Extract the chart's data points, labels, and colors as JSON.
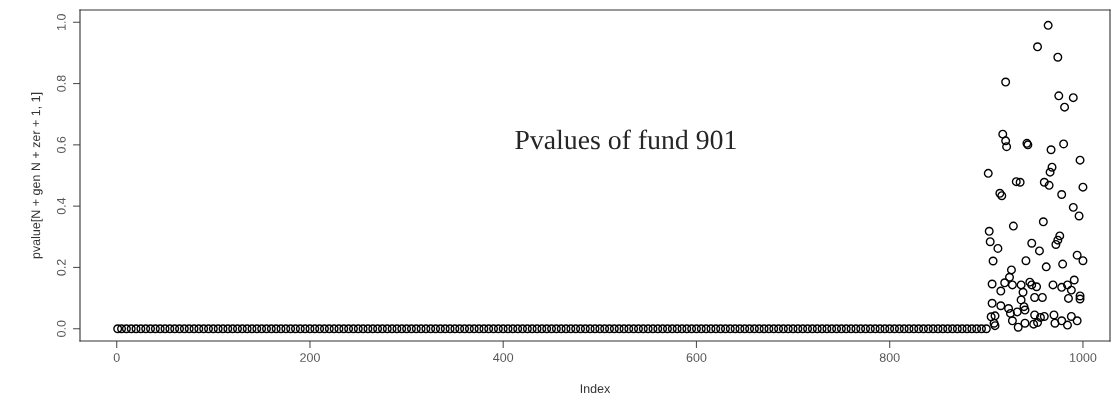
{
  "chart_data": {
    "type": "scatter",
    "xlabel": "Index",
    "ylabel": "pvalue[N + gen N + zer + 1, 1]",
    "annotations": [
      "Pvalues of fund 901"
    ],
    "xlim": [
      -38,
      1028
    ],
    "ylim": [
      -0.04,
      1.04
    ],
    "xticks": [
      0,
      200,
      400,
      600,
      800,
      1000
    ],
    "yticks": [
      {
        "value": 0.0,
        "label": "0.0"
      },
      {
        "value": 0.2,
        "label": "0.2"
      },
      {
        "value": 0.4,
        "label": "0.4"
      },
      {
        "value": 0.6,
        "label": "0.6"
      },
      {
        "value": 0.8,
        "label": "0.8"
      },
      {
        "value": 1.0,
        "label": "1.0"
      }
    ],
    "marker": "circle",
    "grid": false,
    "series": [
      {
        "color": "#000000",
        "x": [
          1,
          5,
          10,
          15,
          20,
          25,
          30,
          35,
          40,
          45,
          50,
          55,
          60,
          65,
          70,
          75,
          80,
          85,
          90,
          95,
          100,
          105,
          110,
          115,
          120,
          125,
          130,
          135,
          140,
          145,
          150,
          155,
          160,
          165,
          170,
          175,
          180,
          185,
          190,
          195,
          200,
          205,
          210,
          215,
          220,
          225,
          230,
          235,
          240,
          245,
          250,
          255,
          260,
          265,
          270,
          275,
          280,
          285,
          290,
          295,
          300,
          305,
          310,
          315,
          320,
          325,
          330,
          335,
          340,
          345,
          350,
          355,
          360,
          365,
          370,
          375,
          380,
          385,
          390,
          395,
          400,
          405,
          410,
          415,
          420,
          425,
          430,
          435,
          440,
          445,
          450,
          455,
          460,
          465,
          470,
          475,
          480,
          485,
          490,
          495,
          500,
          505,
          510,
          515,
          520,
          525,
          530,
          535,
          540,
          545,
          550,
          555,
          560,
          565,
          570,
          575,
          580,
          585,
          590,
          595,
          600,
          605,
          610,
          615,
          620,
          625,
          630,
          635,
          640,
          645,
          650,
          655,
          660,
          665,
          670,
          675,
          680,
          685,
          690,
          695,
          700,
          705,
          710,
          715,
          720,
          725,
          730,
          735,
          740,
          745,
          750,
          755,
          760,
          765,
          770,
          775,
          780,
          785,
          790,
          795,
          800,
          805,
          810,
          815,
          820,
          825,
          830,
          835,
          840,
          845,
          850,
          855,
          860,
          865,
          870,
          875,
          880,
          885,
          890,
          895,
          900
        ],
        "values": [
          0,
          0,
          0,
          0,
          0,
          0,
          0,
          0,
          0,
          0,
          0,
          0,
          0,
          0,
          0,
          0,
          0,
          0,
          0,
          0,
          0,
          0,
          0,
          0,
          0,
          0,
          0,
          0,
          0,
          0,
          0,
          0,
          0,
          0,
          0,
          0,
          0,
          0,
          0,
          0,
          0,
          0,
          0,
          0,
          0,
          0,
          0,
          0,
          0,
          0,
          0,
          0,
          0,
          0,
          0,
          0,
          0,
          0,
          0,
          0,
          0,
          0,
          0,
          0,
          0,
          0,
          0,
          0,
          0,
          0,
          0,
          0,
          0,
          0,
          0,
          0,
          0,
          0,
          0,
          0,
          0,
          0,
          0,
          0,
          0,
          0,
          0,
          0,
          0,
          0,
          0,
          0,
          0,
          0,
          0,
          0,
          0,
          0,
          0,
          0,
          0,
          0,
          0,
          0,
          0,
          0,
          0,
          0,
          0,
          0,
          0,
          0,
          0,
          0,
          0,
          0,
          0,
          0,
          0,
          0,
          0,
          0,
          0,
          0,
          0,
          0,
          0,
          0,
          0,
          0,
          0,
          0,
          0,
          0,
          0,
          0,
          0,
          0,
          0,
          0,
          0,
          0,
          0,
          0,
          0,
          0,
          0,
          0,
          0,
          0,
          0,
          0,
          0,
          0,
          0,
          0,
          0,
          0,
          0,
          0,
          0,
          0,
          0,
          0,
          0,
          0,
          0,
          0,
          0,
          0,
          0,
          0,
          0,
          0,
          0,
          0,
          0,
          0,
          0,
          0,
          0
        ]
      },
      {
        "color": "#000000",
        "x": [
          964,
          953,
          974,
          920,
          975,
          990,
          981,
          917,
          920,
          921,
          942,
          943,
          967,
          980,
          997,
          902,
          968,
          966,
          931,
          935,
          960,
          965,
          1000,
          978,
          914,
          916,
          990,
          996,
          928,
          959,
          903,
          904,
          912,
          947,
          955,
          976,
          974,
          972,
          907,
          941,
          962,
          979,
          994,
          1000,
          926,
          924,
          919,
          906,
          915,
          927,
          936,
          945,
          947,
          952,
          938,
          950,
          958,
          969,
          978,
          984,
          991,
          988,
          985,
          997,
          997,
          936,
          906,
          915,
          923,
          925,
          932,
          939,
          940,
          905,
          909,
          908,
          927,
          933,
          940,
          950,
          956,
          960,
          949,
          953,
          970,
          971,
          978,
          984,
          988,
          994,
          909
        ],
        "values": [
          0.99,
          0.92,
          0.886,
          0.805,
          0.76,
          0.754,
          0.723,
          0.635,
          0.613,
          0.594,
          0.605,
          0.6,
          0.584,
          0.603,
          0.55,
          0.507,
          0.527,
          0.511,
          0.48,
          0.478,
          0.478,
          0.468,
          0.462,
          0.438,
          0.442,
          0.434,
          0.396,
          0.368,
          0.335,
          0.349,
          0.318,
          0.284,
          0.262,
          0.279,
          0.254,
          0.303,
          0.289,
          0.275,
          0.221,
          0.222,
          0.202,
          0.211,
          0.24,
          0.222,
          0.192,
          0.168,
          0.15,
          0.146,
          0.123,
          0.143,
          0.143,
          0.152,
          0.143,
          0.137,
          0.119,
          0.102,
          0.102,
          0.143,
          0.135,
          0.143,
          0.159,
          0.126,
          0.099,
          0.107,
          0.097,
          0.094,
          0.083,
          0.075,
          0.066,
          0.05,
          0.055,
          0.072,
          0.061,
          0.039,
          0.042,
          0.018,
          0.026,
          0.005,
          0.018,
          0.045,
          0.037,
          0.04,
          0.015,
          0.02,
          0.045,
          0.018,
          0.026,
          0.012,
          0.04,
          0.026,
          0.01
        ]
      }
    ]
  }
}
